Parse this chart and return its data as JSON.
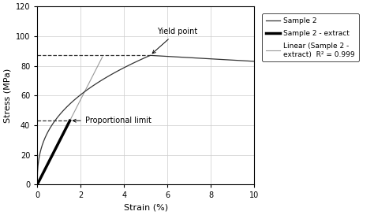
{
  "title": "",
  "xlabel": "Strain (%)",
  "ylabel": "Stress (MPa)",
  "xlim": [
    0,
    10
  ],
  "ylim": [
    0,
    120
  ],
  "xticks": [
    0,
    2,
    4,
    6,
    8,
    10
  ],
  "yticks": [
    0,
    20,
    40,
    60,
    80,
    100,
    120
  ],
  "yield_stress": 87,
  "yield_strain": 5.2,
  "prop_limit_stress": 43,
  "prop_limit_strain": 1.5,
  "background_color": "#ffffff",
  "grid_color": "#cccccc",
  "sample2_color": "#333333",
  "extract_color": "#000000",
  "linear_color": "#999999",
  "legend_labels": [
    "Sample 2",
    "Sample 2 - extract",
    "Linear (Sample 2 -\nextract)  R² = 0.999"
  ],
  "annotation_yield": "Yield point",
  "annotation_prop": "Proportional limit",
  "dashed_line_y1": 87,
  "dashed_line_y2": 43,
  "figsize": [
    4.74,
    2.73
  ],
  "dpi": 100
}
